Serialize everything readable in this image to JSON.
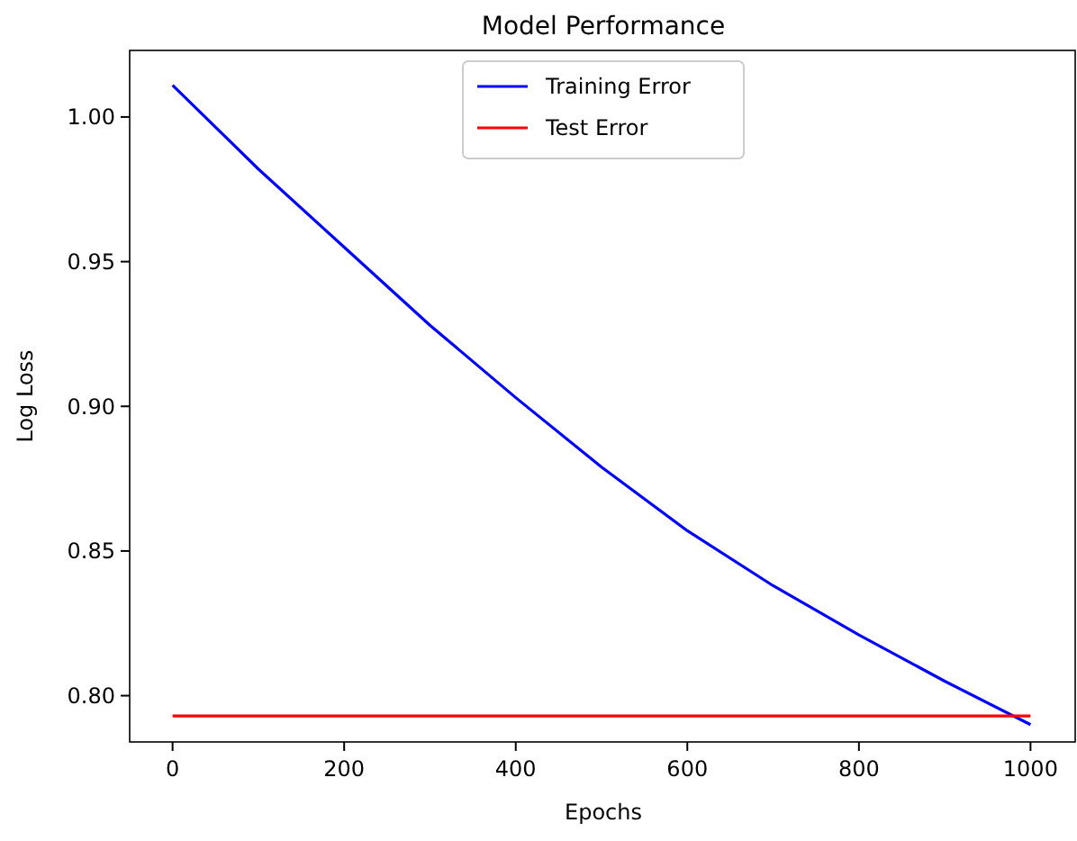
{
  "chart_data": {
    "type": "line",
    "title": "Model Performance",
    "xlabel": "Epochs",
    "ylabel": "Log Loss",
    "xlim": [
      -50,
      1050
    ],
    "ylim": [
      0.784,
      1.023
    ],
    "xticks": [
      0,
      200,
      400,
      600,
      800,
      1000
    ],
    "yticks": [
      {
        "value": 0.8,
        "label": "0.80"
      },
      {
        "value": 0.85,
        "label": "0.85"
      },
      {
        "value": 0.9,
        "label": "0.90"
      },
      {
        "value": 0.95,
        "label": "0.95"
      },
      {
        "value": 1.0,
        "label": "1.00"
      }
    ],
    "legend": "top",
    "grid": false,
    "marker": "none",
    "line_style": "solid",
    "series": [
      {
        "name": "Training Error",
        "color": "#0000ff",
        "x": [
          0,
          100,
          200,
          300,
          400,
          500,
          600,
          700,
          800,
          900,
          1000
        ],
        "values": [
          1.011,
          0.982,
          0.955,
          0.928,
          0.903,
          0.879,
          0.857,
          0.838,
          0.821,
          0.805,
          0.79
        ]
      },
      {
        "name": "Test Error",
        "color": "#ff0000",
        "x": [
          0,
          1000
        ],
        "values": [
          0.793,
          0.793
        ]
      }
    ]
  }
}
